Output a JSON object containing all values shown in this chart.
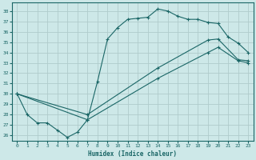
{
  "xlabel": "Humidex (Indice chaleur)",
  "xlim": [
    -0.5,
    23.5
  ],
  "ylim": [
    25.5,
    38.8
  ],
  "yticks": [
    26,
    27,
    28,
    29,
    30,
    31,
    32,
    33,
    34,
    35,
    36,
    37,
    38
  ],
  "xticks": [
    0,
    1,
    2,
    3,
    4,
    5,
    6,
    7,
    8,
    9,
    10,
    11,
    12,
    13,
    14,
    15,
    16,
    17,
    18,
    19,
    20,
    21,
    22,
    23
  ],
  "bg_color": "#cde8e8",
  "grid_color": "#b0cccc",
  "line_color": "#1a6666",
  "line1_x": [
    0,
    1,
    2,
    3,
    4,
    5,
    6,
    7,
    8,
    9,
    10,
    11,
    12,
    13,
    14,
    15,
    16,
    17,
    18,
    19,
    20,
    21,
    22,
    23
  ],
  "line1_y": [
    30.0,
    28.0,
    27.2,
    27.2,
    26.5,
    25.8,
    26.3,
    27.5,
    31.2,
    35.3,
    36.4,
    37.2,
    37.3,
    37.4,
    38.2,
    38.0,
    37.5,
    37.2,
    37.2,
    36.9,
    36.8,
    35.5,
    34.9,
    34.0
  ],
  "line2_x": [
    0,
    7,
    14,
    19,
    20,
    22,
    23
  ],
  "line2_y": [
    30.0,
    27.5,
    31.5,
    34.0,
    34.5,
    33.2,
    33.0
  ],
  "line3_x": [
    0,
    7,
    14,
    19,
    20,
    22,
    23
  ],
  "line3_y": [
    30.0,
    28.0,
    32.5,
    35.2,
    35.3,
    33.3,
    33.2
  ]
}
